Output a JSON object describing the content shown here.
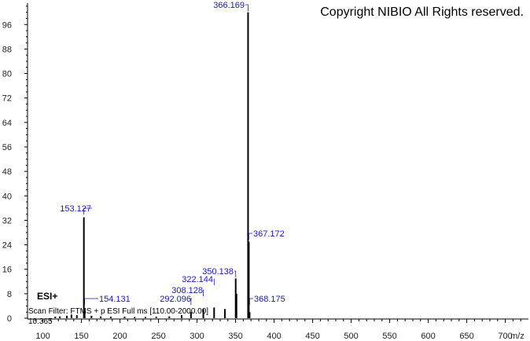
{
  "copyright": "Copyright NIBIO All Rights reserved.",
  "ion_mode": "ESI+",
  "scan_filter": "Scan Filter: FTMS + p ESI Full ms [110.00-2000.00]",
  "retention_time": "10.365",
  "chart_data": {
    "type": "bar",
    "title": "",
    "xlabel": "m/z",
    "ylabel": "",
    "xlim": [
      80,
      730
    ],
    "ylim": [
      0,
      103
    ],
    "x_ticks": [
      100,
      150,
      200,
      250,
      300,
      350,
      400,
      450,
      500,
      550,
      600,
      650,
      700
    ],
    "y_ticks": [
      0,
      8,
      16,
      24,
      32,
      40,
      48,
      56,
      64,
      72,
      80,
      88,
      96
    ],
    "peaks": [
      {
        "mz": 153.127,
        "intensity": 33,
        "label": "153.127"
      },
      {
        "mz": 154.131,
        "intensity": 2.5,
        "label": "154.131"
      },
      {
        "mz": 292.096,
        "intensity": 2,
        "label": "292.096"
      },
      {
        "mz": 308.128,
        "intensity": 3,
        "label": "308.128"
      },
      {
        "mz": 322.144,
        "intensity": 3.5,
        "label": "322.144"
      },
      {
        "mz": 350.138,
        "intensity": 13,
        "label": "350.138"
      },
      {
        "mz": 366.169,
        "intensity": 100,
        "label": "366.169"
      },
      {
        "mz": 367.172,
        "intensity": 25,
        "label": "367.172"
      },
      {
        "mz": 368.175,
        "intensity": 2,
        "label": "368.175"
      },
      {
        "mz": 351.14,
        "intensity": 8
      },
      {
        "mz": 336.1,
        "intensity": 3
      },
      {
        "mz": 280.0,
        "intensity": 1
      },
      {
        "mz": 264.0,
        "intensity": 0.6
      },
      {
        "mz": 247.0,
        "intensity": 0.5
      },
      {
        "mz": 233.0,
        "intensity": 0.4
      },
      {
        "mz": 219.0,
        "intensity": 0.4
      },
      {
        "mz": 206.0,
        "intensity": 0.5
      },
      {
        "mz": 188.0,
        "intensity": 0.5
      },
      {
        "mz": 175.0,
        "intensity": 0.6
      },
      {
        "mz": 163.0,
        "intensity": 0.8
      },
      {
        "mz": 144.0,
        "intensity": 1
      },
      {
        "mz": 137.0,
        "intensity": 1.2
      },
      {
        "mz": 131.0,
        "intensity": 0.8
      },
      {
        "mz": 122.0,
        "intensity": 0.6
      },
      {
        "mz": 116.0,
        "intensity": 0.5
      }
    ]
  }
}
